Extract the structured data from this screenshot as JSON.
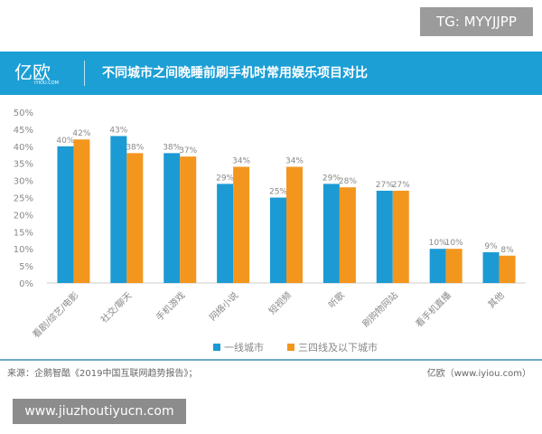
{
  "watermark_top": "TG: MYYJJPP",
  "watermark_bottom": "www.jiuzhoutiyucn.com",
  "logo": {
    "text": "亿欧",
    "sub": "IYIOU.COM"
  },
  "source": "来源：企鹅智酷《2019中国互联网趋势报告》；",
  "site": "亿欧（www.iyiou.com）",
  "chart_data": {
    "type": "bar",
    "title": "不同城市之间晚睡前刷手机时常用娱乐项目对比",
    "categories": [
      "看剧/综艺/电影",
      "社交/聊天",
      "手机游戏",
      "网络小说",
      "短视频",
      "听歌",
      "刷购物网站",
      "看手机直播",
      "其他"
    ],
    "series": [
      {
        "name": "一线城市",
        "color": "#1c9ad3",
        "values": [
          40,
          43,
          38,
          29,
          25,
          29,
          27,
          10,
          9
        ]
      },
      {
        "name": "三四线及以下城市",
        "color": "#f3961e",
        "values": [
          42,
          38,
          37,
          34,
          34,
          28,
          27,
          10,
          8
        ]
      }
    ],
    "yticks": [
      "0%",
      "5%",
      "10%",
      "15%",
      "20%",
      "25%",
      "30%",
      "35%",
      "40%",
      "45%",
      "50%"
    ],
    "ylim": [
      0,
      50
    ],
    "legend": "bottom",
    "grid": false
  }
}
